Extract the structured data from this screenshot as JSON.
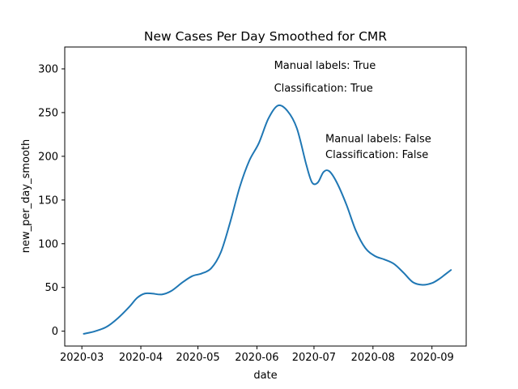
{
  "chart_data": {
    "type": "line",
    "title": "New Cases Per Day Smoothed for CMR",
    "xlabel": "date",
    "ylabel": "new_per_day_smooth",
    "x_ticks": [
      "2020-03",
      "2020-04",
      "2020-05",
      "2020-06",
      "2020-07",
      "2020-08",
      "2020-09"
    ],
    "y_ticks": [
      0,
      50,
      100,
      150,
      200,
      250,
      300
    ],
    "xlim": [
      "2020-02-21",
      "2020-09-19"
    ],
    "ylim": [
      -17,
      325
    ],
    "grid": false,
    "legend": "none",
    "series": [
      {
        "color": "#1f77b4",
        "points": [
          [
            "2020-03-02",
            -3
          ],
          [
            "2020-03-08",
            0
          ],
          [
            "2020-03-14",
            5
          ],
          [
            "2020-03-20",
            15
          ],
          [
            "2020-03-26",
            28
          ],
          [
            "2020-03-30",
            38
          ],
          [
            "2020-04-03",
            43
          ],
          [
            "2020-04-07",
            43
          ],
          [
            "2020-04-12",
            42
          ],
          [
            "2020-04-17",
            46
          ],
          [
            "2020-04-23",
            56
          ],
          [
            "2020-04-28",
            63
          ],
          [
            "2020-05-03",
            66
          ],
          [
            "2020-05-08",
            72
          ],
          [
            "2020-05-13",
            90
          ],
          [
            "2020-05-18",
            125
          ],
          [
            "2020-05-23",
            165
          ],
          [
            "2020-05-28",
            195
          ],
          [
            "2020-06-02",
            215
          ],
          [
            "2020-06-07",
            243
          ],
          [
            "2020-06-12",
            258
          ],
          [
            "2020-06-17",
            252
          ],
          [
            "2020-06-22",
            232
          ],
          [
            "2020-06-27",
            190
          ],
          [
            "2020-06-30",
            170
          ],
          [
            "2020-07-03",
            170
          ],
          [
            "2020-07-06",
            182
          ],
          [
            "2020-07-09",
            183
          ],
          [
            "2020-07-13",
            170
          ],
          [
            "2020-07-18",
            145
          ],
          [
            "2020-07-23",
            115
          ],
          [
            "2020-07-28",
            95
          ],
          [
            "2020-08-02",
            86
          ],
          [
            "2020-08-07",
            82
          ],
          [
            "2020-08-12",
            77
          ],
          [
            "2020-08-17",
            67
          ],
          [
            "2020-08-22",
            56
          ],
          [
            "2020-08-27",
            53
          ],
          [
            "2020-09-01",
            55
          ],
          [
            "2020-09-05",
            60
          ],
          [
            "2020-09-08",
            65
          ],
          [
            "2020-09-11",
            70
          ]
        ]
      }
    ],
    "annotations": [
      {
        "date": "2020-06-10",
        "y": 300,
        "text": "Manual labels: True"
      },
      {
        "date": "2020-06-10",
        "y": 274,
        "text": "Classification: True"
      },
      {
        "date": "2020-07-07",
        "y": 216,
        "text": "Manual labels: False"
      },
      {
        "date": "2020-07-07",
        "y": 198,
        "text": "Classification: False"
      }
    ]
  }
}
